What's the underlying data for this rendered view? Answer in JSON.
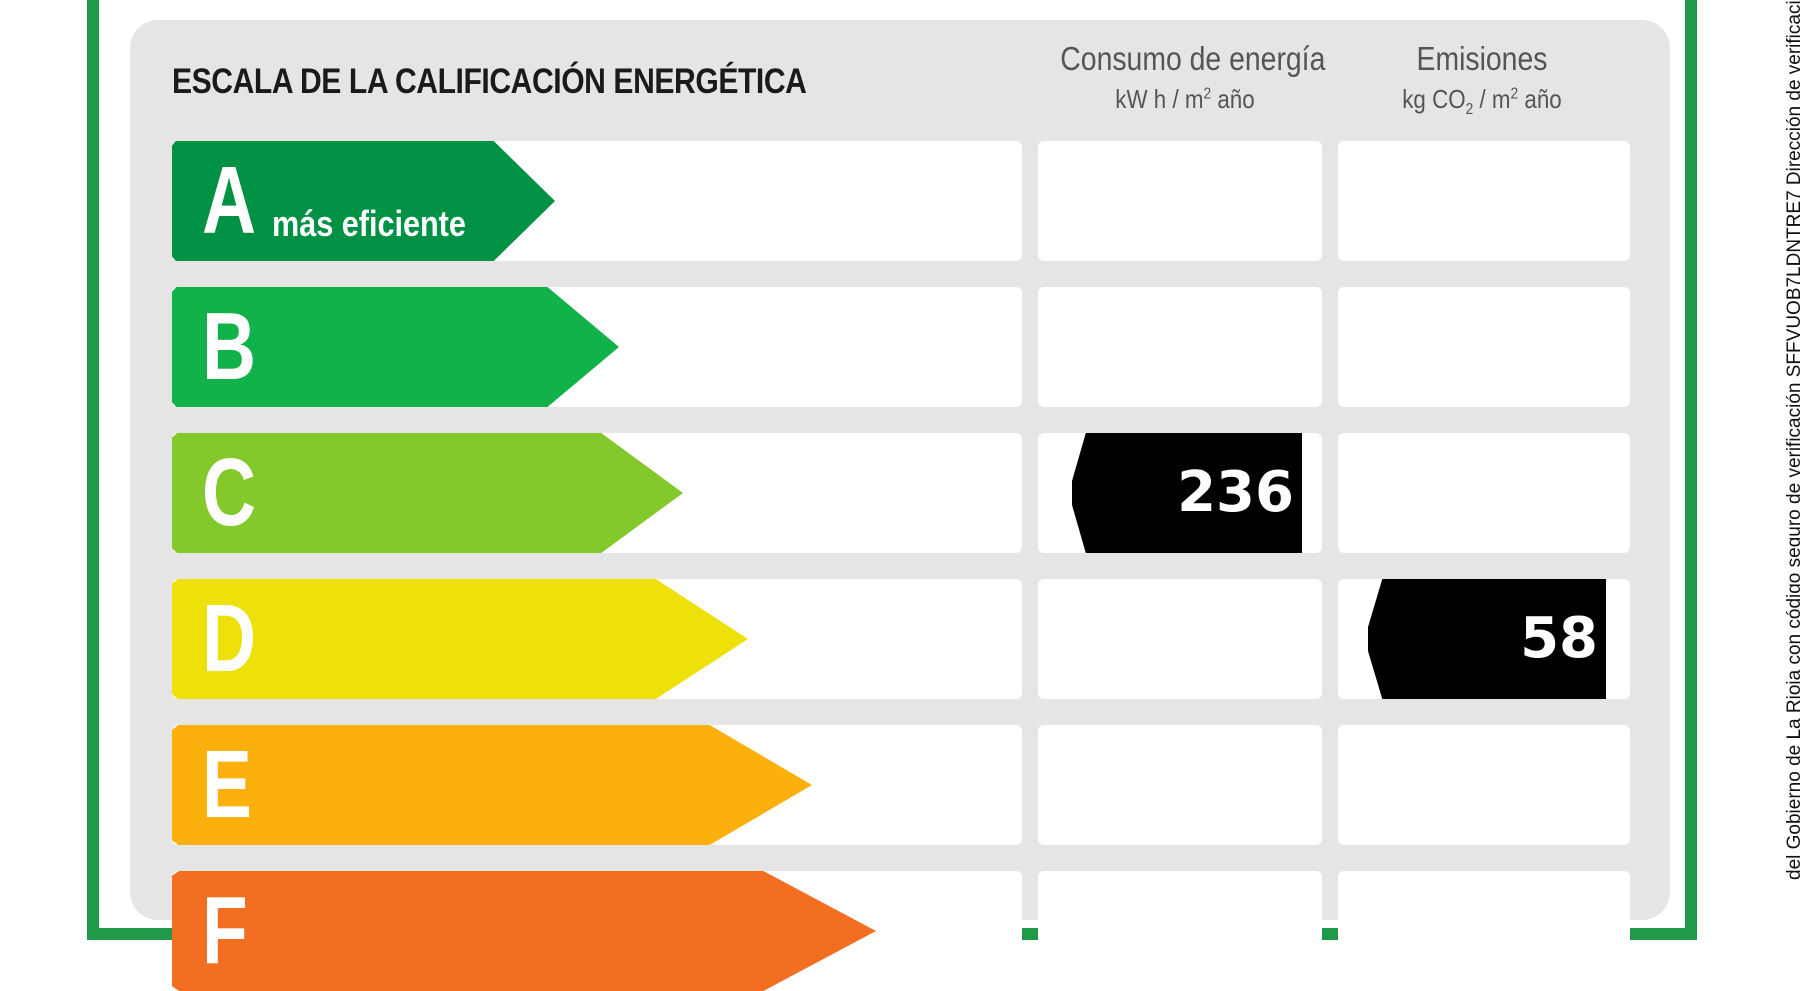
{
  "label": {
    "title": "ESCALA DE LA CALIFICACIÓN ENERGÉTICA",
    "col_consumo": {
      "title": "Consumo de energía",
      "unit_pre": "kW h / m",
      "unit_sup": "2",
      "unit_post": " año"
    },
    "col_emisiones": {
      "title": "Emisiones",
      "unit_pre": "kg CO",
      "unit_sub": "2",
      "unit_mid": " / m",
      "unit_sup": "2",
      "unit_post": " año"
    },
    "rows": [
      {
        "letter": "A",
        "sublabel": "más eficiente",
        "color": "#009145",
        "band_fraction": 0.23
      },
      {
        "letter": "B",
        "sublabel": "",
        "color": "#12b24b",
        "band_fraction": 0.27
      },
      {
        "letter": "C",
        "sublabel": "",
        "color": "#84c92b",
        "band_fraction": 0.31
      },
      {
        "letter": "D",
        "sublabel": "",
        "color": "#eee10a",
        "band_fraction": 0.35
      },
      {
        "letter": "E",
        "sublabel": "",
        "color": "#fbb00c",
        "band_fraction": 0.39
      },
      {
        "letter": "F",
        "sublabel": "",
        "color": "#f26f21",
        "band_fraction": 0.43
      }
    ],
    "consumo_value": "236",
    "consumo_row": "C",
    "emisiones_value": "58",
    "emisiones_row": "D"
  },
  "side_text": "del Gobierno de La Rioja con código seguro de verificación SFFVUQB7LDNTRE7 Dirección de verificación: < h",
  "frame_color": "#1e9a48"
}
